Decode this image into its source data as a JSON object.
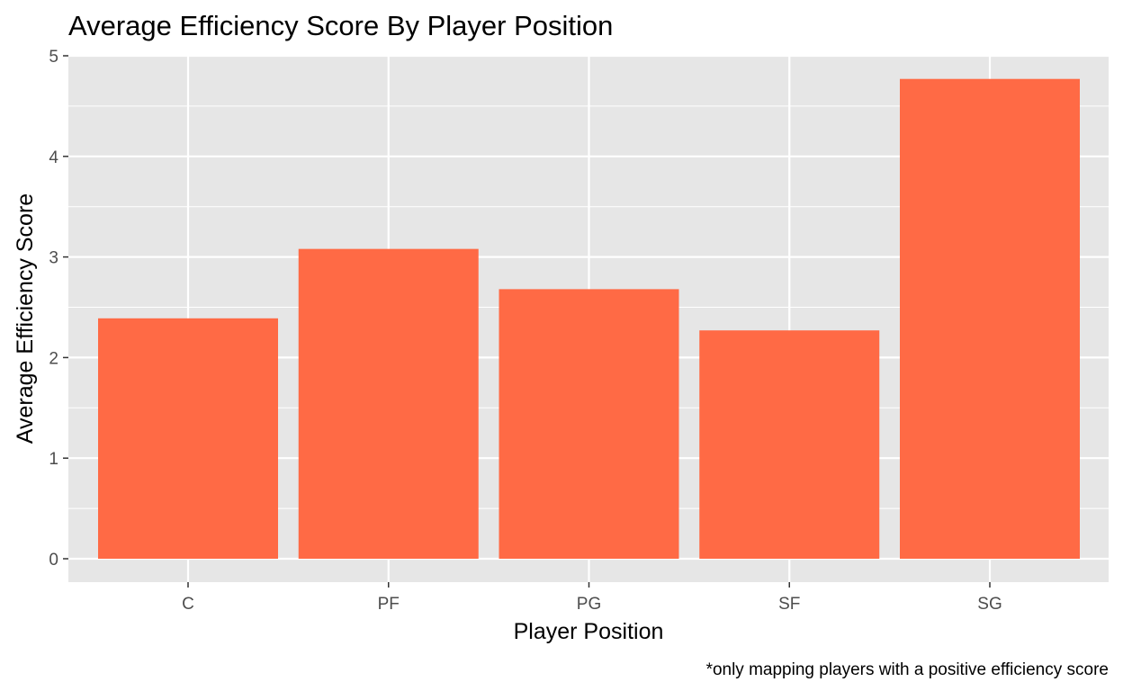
{
  "chart_data": {
    "type": "bar",
    "title": "Average Efficiency Score By Player Position",
    "xlabel": "Player Position",
    "ylabel": "Average Efficiency Score",
    "caption": "*only mapping players with a positive efficiency score",
    "categories": [
      "C",
      "PF",
      "PG",
      "SF",
      "SG"
    ],
    "values": [
      2.39,
      3.08,
      2.68,
      2.27,
      4.77
    ],
    "ylim": [
      0,
      5
    ],
    "yticks": [
      0,
      1,
      2,
      3,
      4,
      5
    ],
    "grid": true,
    "legend": "none",
    "bar_color": "#FF6A45",
    "panel_color": "#E6E6E6",
    "grid_color": "#FFFFFF"
  }
}
